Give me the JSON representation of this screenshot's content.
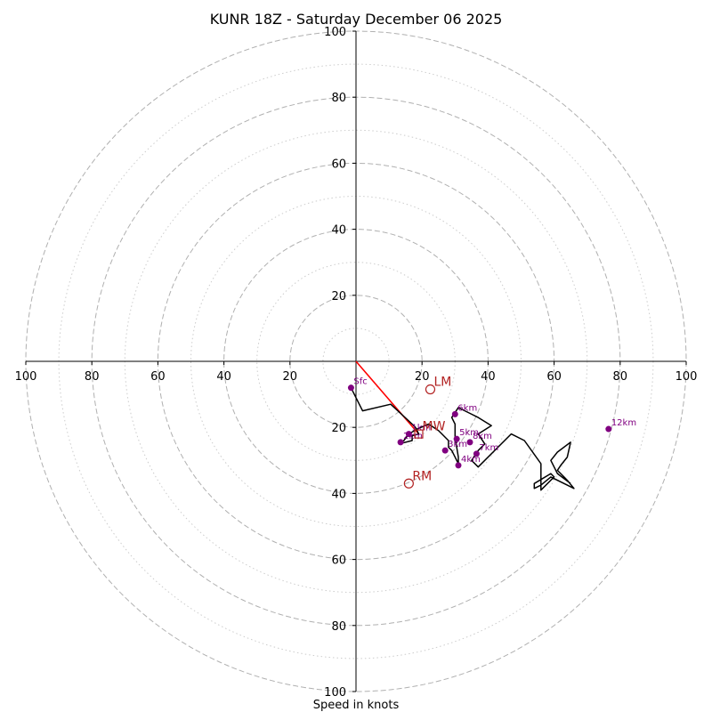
{
  "chart_data": {
    "type": "hodograph",
    "title": "KUNR 18Z - Saturday December 06 2025",
    "xlabel": "Speed in knots",
    "range": [
      -100,
      100
    ],
    "ring_major": [
      20,
      40,
      60,
      80,
      100
    ],
    "ring_minor": [
      10,
      30,
      50,
      70,
      90
    ],
    "tick_labels": {
      "top": [
        "20",
        "40",
        "60",
        "80",
        "100"
      ],
      "bottom": [
        "20",
        "40",
        "60",
        "80",
        "100"
      ],
      "left": [
        "20",
        "40",
        "60",
        "80",
        "100"
      ],
      "right": [
        "20",
        "40",
        "60",
        "80",
        "100"
      ]
    },
    "hodograph_trace": [
      [
        -1.5,
        -8
      ],
      [
        2,
        -15
      ],
      [
        10.5,
        -13
      ],
      [
        17,
        -19
      ],
      [
        18,
        -20
      ],
      [
        19,
        -22
      ],
      [
        17,
        -22.5
      ],
      [
        17,
        -24
      ],
      [
        13,
        -25
      ],
      [
        14.5,
        -24
      ],
      [
        16,
        -22
      ],
      [
        18.5,
        -20.5
      ],
      [
        22,
        -19
      ],
      [
        25,
        -21
      ],
      [
        28,
        -24
      ],
      [
        28,
        -26
      ],
      [
        29,
        -27
      ],
      [
        31,
        -31
      ],
      [
        31,
        -29
      ],
      [
        30,
        -23
      ],
      [
        30,
        -19
      ],
      [
        29,
        -17
      ],
      [
        31,
        -14
      ],
      [
        34,
        -15.5
      ],
      [
        37,
        -17
      ],
      [
        41,
        -19.5
      ],
      [
        37,
        -22
      ],
      [
        39,
        -25
      ],
      [
        37,
        -27
      ],
      [
        35,
        -30
      ],
      [
        37,
        -32
      ],
      [
        47,
        -22
      ],
      [
        51,
        -24
      ],
      [
        56,
        -31
      ],
      [
        56,
        -39
      ],
      [
        60,
        -35
      ],
      [
        59,
        -34
      ],
      [
        54,
        -37
      ],
      [
        54,
        -38.5
      ],
      [
        56,
        -37.5
      ],
      [
        59,
        -35
      ],
      [
        66,
        -38.5
      ],
      [
        64,
        -36
      ],
      [
        61,
        -33
      ],
      [
        62,
        -31.5
      ],
      [
        64,
        -29
      ],
      [
        65,
        -24.5
      ],
      [
        61,
        -27.5
      ],
      [
        59,
        -30
      ],
      [
        61,
        -34
      ],
      [
        65,
        -37
      ]
    ],
    "height_points": [
      {
        "label": "Sfc",
        "u": -1.5,
        "v": -8
      },
      {
        "label": "1km",
        "u": 16,
        "v": -22
      },
      {
        "label": "2km",
        "u": 13.5,
        "v": -24.5
      },
      {
        "label": "3km",
        "u": 27,
        "v": -27
      },
      {
        "label": "4km",
        "u": 31,
        "v": -31.5
      },
      {
        "label": "5km",
        "u": 30.5,
        "v": -23.5
      },
      {
        "label": "6km",
        "u": 30,
        "v": -16
      },
      {
        "label": "7km",
        "u": 36.5,
        "v": -28
      },
      {
        "label": "8km",
        "u": 34.5,
        "v": -24.5
      },
      {
        "label": "12km",
        "u": 76.5,
        "v": -20.5
      }
    ],
    "mean_wind_shear": {
      "from": [
        0,
        0
      ],
      "to": [
        19,
        -22
      ]
    },
    "markers": [
      {
        "label": "LM",
        "u": 22.5,
        "v": -8.5,
        "shape": "circle"
      },
      {
        "label": "MW",
        "u": 19,
        "v": -22,
        "shape": "square"
      },
      {
        "label": "RM",
        "u": 16,
        "v": -37,
        "shape": "circle"
      }
    ],
    "colors": {
      "trace": "#000000",
      "points": "#800080",
      "markers": "#b22222",
      "shear": "#ff0000",
      "grid": "#b0b0b0"
    }
  }
}
